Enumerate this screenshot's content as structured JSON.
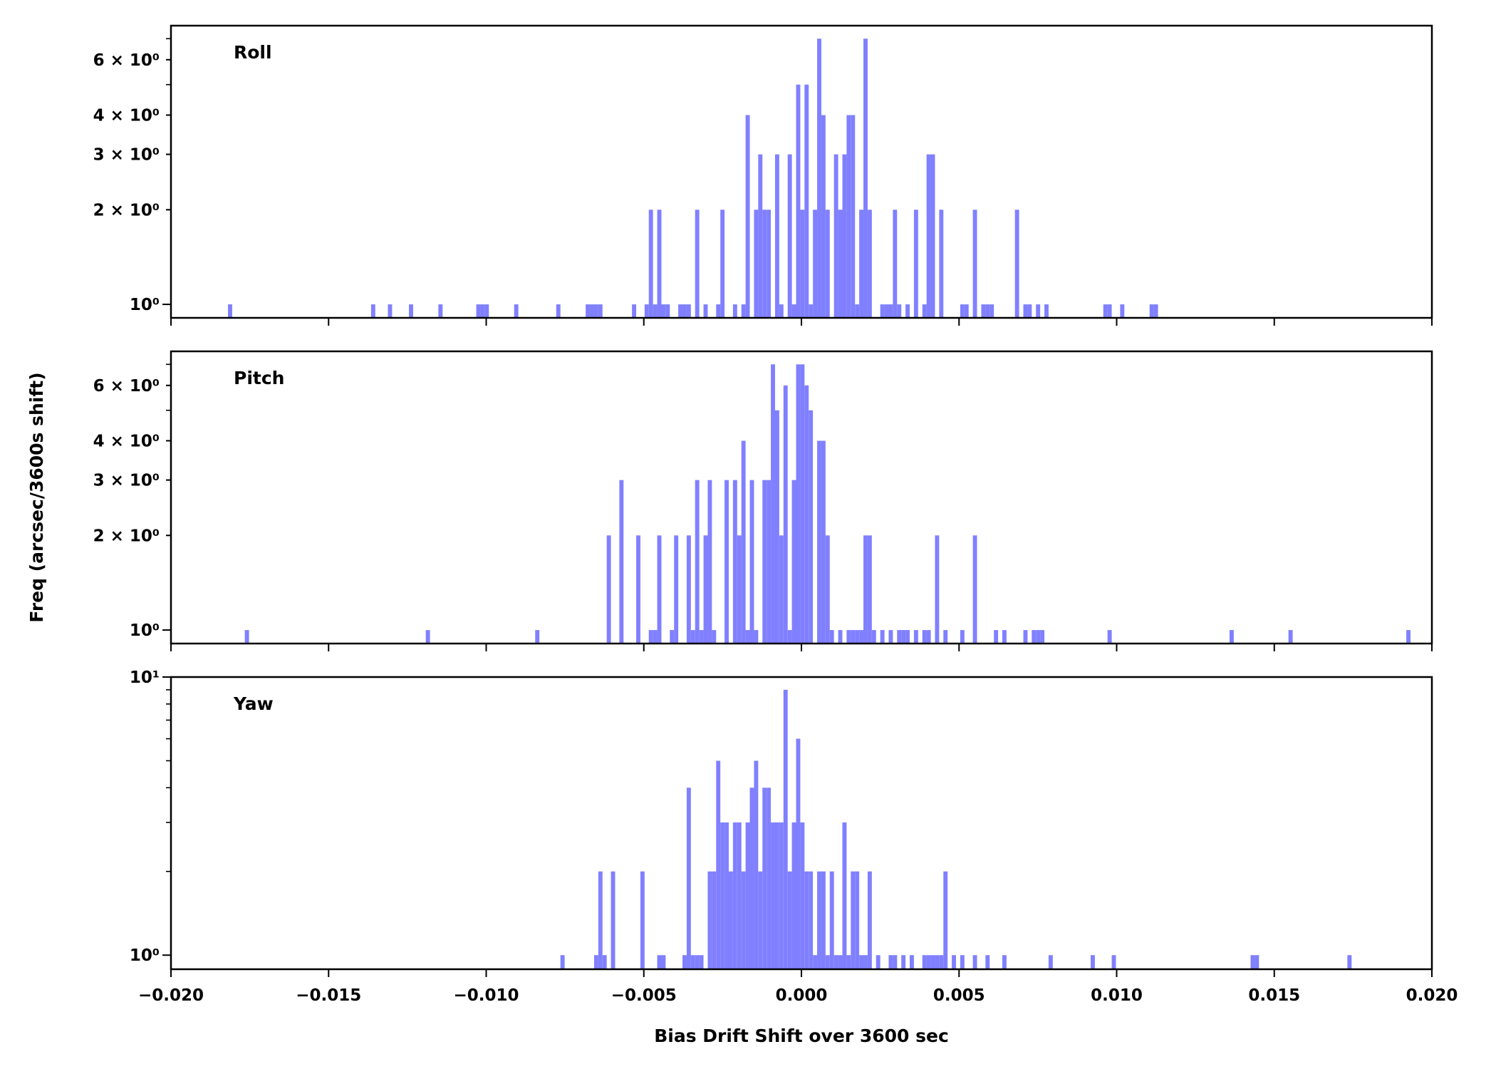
{
  "chart_data": {
    "type": "bar",
    "subtype": "histogram",
    "xlabel": "Bias Drift Shift over 3600 sec",
    "ylabel": "Freq (arcsec/3600s shift)",
    "xlim": [
      -0.02,
      0.02
    ],
    "xticks": [
      -0.02,
      -0.015,
      -0.01,
      -0.005,
      0.0,
      0.005,
      0.01,
      0.015,
      0.02
    ],
    "xtick_labels": [
      "−0.020",
      "−0.015",
      "−0.010",
      "−0.005",
      "0.000",
      "0.005",
      "0.010",
      "0.015",
      "0.020"
    ],
    "yscale": "log",
    "bar_color": "#8080ff",
    "bin_width": 0.0001335,
    "bin_ref_center": 0.000565,
    "bins_format": "[bin_index, count]; bin center = bin_ref_center + bin_index * bin_width",
    "panels": [
      {
        "title": "Roll",
        "ylim": [
          0.906,
          7.7
        ],
        "yticks": [
          {
            "value": 1,
            "label": "10⁰"
          },
          {
            "value": 2,
            "label": "2 × 10⁰"
          },
          {
            "value": 3,
            "label": "3 × 10⁰"
          },
          {
            "value": 4,
            "label": "4 × 10⁰"
          },
          {
            "value": 6,
            "label": "6 × 10⁰"
          }
        ],
        "minor_ticks": [
          2,
          3,
          4,
          5,
          6,
          7
        ],
        "bins": [
          [
            -140,
            1
          ],
          [
            -106,
            1
          ],
          [
            -102,
            1
          ],
          [
            -97,
            1
          ],
          [
            -90,
            1
          ],
          [
            -81,
            1
          ],
          [
            -80,
            1
          ],
          [
            -79,
            1
          ],
          [
            -72,
            1
          ],
          [
            -62,
            1
          ],
          [
            -55,
            1
          ],
          [
            -54,
            1
          ],
          [
            -53,
            1
          ],
          [
            -52,
            1
          ],
          [
            -44,
            1
          ],
          [
            -41,
            1
          ],
          [
            -40,
            2
          ],
          [
            -39,
            1
          ],
          [
            -38,
            2
          ],
          [
            -37,
            1
          ],
          [
            -36,
            1
          ],
          [
            -33,
            1
          ],
          [
            -32,
            1
          ],
          [
            -31,
            1
          ],
          [
            -29,
            2
          ],
          [
            -27,
            1
          ],
          [
            -24,
            1
          ],
          [
            -23,
            2
          ],
          [
            -20,
            1
          ],
          [
            -18,
            1
          ],
          [
            -17,
            4
          ],
          [
            -15,
            2
          ],
          [
            -14,
            3
          ],
          [
            -13,
            2
          ],
          [
            -12,
            2
          ],
          [
            -10,
            3
          ],
          [
            -9,
            1
          ],
          [
            -7,
            3
          ],
          [
            -6,
            1
          ],
          [
            -5,
            5
          ],
          [
            -4,
            2
          ],
          [
            -3,
            5
          ],
          [
            -2,
            1
          ],
          [
            -1,
            2
          ],
          [
            0,
            7
          ],
          [
            1,
            4
          ],
          [
            2,
            2
          ],
          [
            4,
            3
          ],
          [
            5,
            2
          ],
          [
            6,
            3
          ],
          [
            7,
            4
          ],
          [
            8,
            4
          ],
          [
            9,
            1
          ],
          [
            10,
            2
          ],
          [
            11,
            7
          ],
          [
            12,
            2
          ],
          [
            15,
            1
          ],
          [
            16,
            1
          ],
          [
            17,
            1
          ],
          [
            18,
            2
          ],
          [
            19,
            1
          ],
          [
            21,
            1
          ],
          [
            23,
            2
          ],
          [
            25,
            1
          ],
          [
            26,
            3
          ],
          [
            27,
            3
          ],
          [
            29,
            2
          ],
          [
            34,
            1
          ],
          [
            35,
            1
          ],
          [
            37,
            2
          ],
          [
            39,
            1
          ],
          [
            40,
            1
          ],
          [
            41,
            1
          ],
          [
            47,
            2
          ],
          [
            49,
            1
          ],
          [
            50,
            1
          ],
          [
            52,
            1
          ],
          [
            54,
            1
          ],
          [
            68,
            1
          ],
          [
            69,
            1
          ],
          [
            72,
            1
          ],
          [
            79,
            1
          ],
          [
            80,
            1
          ]
        ]
      },
      {
        "title": "Pitch",
        "ylim": [
          0.906,
          7.7
        ],
        "yticks": [
          {
            "value": 1,
            "label": "10⁰"
          },
          {
            "value": 2,
            "label": "2 × 10⁰"
          },
          {
            "value": 3,
            "label": "3 × 10⁰"
          },
          {
            "value": 4,
            "label": "4 × 10⁰"
          },
          {
            "value": 6,
            "label": "6 × 10⁰"
          }
        ],
        "minor_ticks": [
          2,
          3,
          4,
          5,
          6,
          7
        ],
        "bins": [
          [
            -136,
            1
          ],
          [
            -93,
            1
          ],
          [
            -67,
            1
          ],
          [
            -50,
            2
          ],
          [
            -47,
            3
          ],
          [
            -43,
            2
          ],
          [
            -40,
            1
          ],
          [
            -39,
            1
          ],
          [
            -38,
            2
          ],
          [
            -35,
            1
          ],
          [
            -34,
            2
          ],
          [
            -31,
            2
          ],
          [
            -30,
            1
          ],
          [
            -29,
            3
          ],
          [
            -28,
            1
          ],
          [
            -27,
            2
          ],
          [
            -26,
            3
          ],
          [
            -25,
            1
          ],
          [
            -22,
            3
          ],
          [
            -20,
            3
          ],
          [
            -19,
            2
          ],
          [
            -18,
            4
          ],
          [
            -17,
            1
          ],
          [
            -16,
            3
          ],
          [
            -15,
            1
          ],
          [
            -13,
            3
          ],
          [
            -12,
            3
          ],
          [
            -11,
            7
          ],
          [
            -10,
            5
          ],
          [
            -9,
            2
          ],
          [
            -8,
            6
          ],
          [
            -7,
            1
          ],
          [
            -6,
            3
          ],
          [
            -5,
            7
          ],
          [
            -4,
            7
          ],
          [
            -3,
            6
          ],
          [
            -2,
            5
          ],
          [
            0,
            4
          ],
          [
            1,
            4
          ],
          [
            2,
            2
          ],
          [
            3,
            1
          ],
          [
            5,
            1
          ],
          [
            7,
            1
          ],
          [
            8,
            1
          ],
          [
            9,
            1
          ],
          [
            10,
            1
          ],
          [
            11,
            2
          ],
          [
            12,
            2
          ],
          [
            13,
            1
          ],
          [
            15,
            1
          ],
          [
            17,
            1
          ],
          [
            19,
            1
          ],
          [
            20,
            1
          ],
          [
            21,
            1
          ],
          [
            23,
            1
          ],
          [
            25,
            1
          ],
          [
            26,
            1
          ],
          [
            28,
            2
          ],
          [
            30,
            1
          ],
          [
            34,
            1
          ],
          [
            37,
            2
          ],
          [
            42,
            1
          ],
          [
            44,
            1
          ],
          [
            49,
            1
          ],
          [
            51,
            1
          ],
          [
            52,
            1
          ],
          [
            53,
            1
          ],
          [
            69,
            1
          ],
          [
            98,
            1
          ],
          [
            112,
            1
          ],
          [
            140,
            1
          ]
        ]
      },
      {
        "title": "Yaw",
        "ylim": [
          0.89,
          10
        ],
        "yticks": [
          {
            "value": 1,
            "label": "10⁰"
          },
          {
            "value": 10,
            "label": "10¹"
          }
        ],
        "minor_ticks": [
          2,
          3,
          4,
          5,
          6,
          7,
          8,
          9
        ],
        "bins": [
          [
            -61,
            1
          ],
          [
            -53,
            1
          ],
          [
            -52,
            2
          ],
          [
            -51,
            1
          ],
          [
            -49,
            2
          ],
          [
            -42,
            2
          ],
          [
            -38,
            1
          ],
          [
            -37,
            1
          ],
          [
            -32,
            1
          ],
          [
            -31,
            4
          ],
          [
            -30,
            1
          ],
          [
            -29,
            1
          ],
          [
            -28,
            1
          ],
          [
            -26,
            2
          ],
          [
            -25,
            2
          ],
          [
            -24,
            5
          ],
          [
            -23,
            3
          ],
          [
            -22,
            3
          ],
          [
            -21,
            2
          ],
          [
            -20,
            3
          ],
          [
            -19,
            3
          ],
          [
            -18,
            2
          ],
          [
            -17,
            3
          ],
          [
            -16,
            4
          ],
          [
            -15,
            5
          ],
          [
            -14,
            2
          ],
          [
            -13,
            4
          ],
          [
            -12,
            4
          ],
          [
            -11,
            3
          ],
          [
            -10,
            3
          ],
          [
            -9,
            3
          ],
          [
            -8,
            9
          ],
          [
            -7,
            2
          ],
          [
            -6,
            3
          ],
          [
            -5,
            6
          ],
          [
            -4,
            3
          ],
          [
            -3,
            2
          ],
          [
            -2,
            2
          ],
          [
            -1,
            1
          ],
          [
            0,
            2
          ],
          [
            1,
            2
          ],
          [
            2,
            1
          ],
          [
            3,
            2
          ],
          [
            4,
            1
          ],
          [
            5,
            1
          ],
          [
            6,
            3
          ],
          [
            7,
            1
          ],
          [
            8,
            2
          ],
          [
            9,
            2
          ],
          [
            10,
            1
          ],
          [
            11,
            1
          ],
          [
            12,
            2
          ],
          [
            14,
            1
          ],
          [
            17,
            1
          ],
          [
            18,
            1
          ],
          [
            20,
            1
          ],
          [
            22,
            1
          ],
          [
            25,
            1
          ],
          [
            26,
            1
          ],
          [
            27,
            1
          ],
          [
            28,
            1
          ],
          [
            29,
            1
          ],
          [
            30,
            2
          ],
          [
            32,
            1
          ],
          [
            34,
            1
          ],
          [
            37,
            1
          ],
          [
            40,
            1
          ],
          [
            44,
            1
          ],
          [
            55,
            1
          ],
          [
            65,
            1
          ],
          [
            70,
            1
          ],
          [
            103,
            1
          ],
          [
            104,
            1
          ],
          [
            126,
            1
          ]
        ]
      }
    ]
  }
}
